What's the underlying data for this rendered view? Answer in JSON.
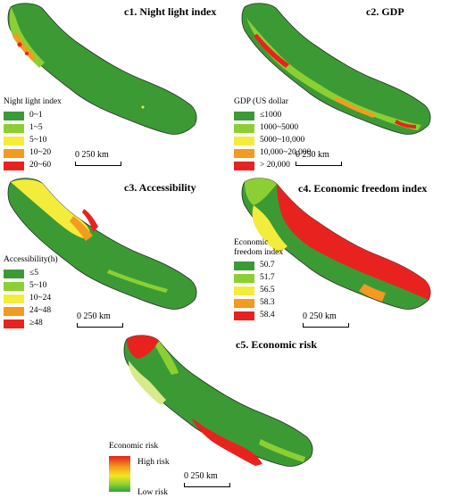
{
  "panels": [
    {
      "id": "c1",
      "title": "c1. Night light index",
      "legend_title": "Night light index",
      "legend": [
        {
          "label": "0~1",
          "color": "#3c9a35"
        },
        {
          "label": "1~5",
          "color": "#8ccf33"
        },
        {
          "label": "5~10",
          "color": "#f4ec3a"
        },
        {
          "label": "10~20",
          "color": "#f39a1f"
        },
        {
          "label": "20~60",
          "color": "#e8231f"
        }
      ],
      "scale": "0 250 km"
    },
    {
      "id": "c2",
      "title": "c2. GDP",
      "legend_title": "GDP (US dollar",
      "legend": [
        {
          "label": "≤1000",
          "color": "#3c9a35"
        },
        {
          "label": "1000~5000",
          "color": "#8ccf33"
        },
        {
          "label": "5000~10,000",
          "color": "#f4ec3a"
        },
        {
          "label": "10,000~20,000",
          "color": "#f39a1f"
        },
        {
          "label": "> 20,000",
          "color": "#e8231f"
        }
      ],
      "scale": "0 250 km"
    },
    {
      "id": "c3",
      "title": "c3. Accessibility",
      "legend_title": "Accessibility(h)",
      "legend": [
        {
          "label": "≤5",
          "color": "#3c9a35"
        },
        {
          "label": "5~10",
          "color": "#8ccf33"
        },
        {
          "label": "10~24",
          "color": "#f4ec3a"
        },
        {
          "label": "24~48",
          "color": "#f39a1f"
        },
        {
          "label": "≥48",
          "color": "#e8231f"
        }
      ],
      "scale": "0 250 km"
    },
    {
      "id": "c4",
      "title": "c4. Economic freedom index",
      "legend_title_lines": [
        "Economic",
        "freedom index"
      ],
      "legend": [
        {
          "label": "50.7",
          "color": "#3c9a35"
        },
        {
          "label": "51.7",
          "color": "#8ccf33"
        },
        {
          "label": "56.5",
          "color": "#f4ec3a"
        },
        {
          "label": "58.3",
          "color": "#f39a1f"
        },
        {
          "label": "58.4",
          "color": "#e8231f"
        }
      ],
      "scale": "0 250 km"
    },
    {
      "id": "c5",
      "title": "c5. Economic risk",
      "legend_title": "Economic risk",
      "legend_high": "High risk",
      "legend_low": "Low risk",
      "scale": "0 250 km"
    }
  ]
}
